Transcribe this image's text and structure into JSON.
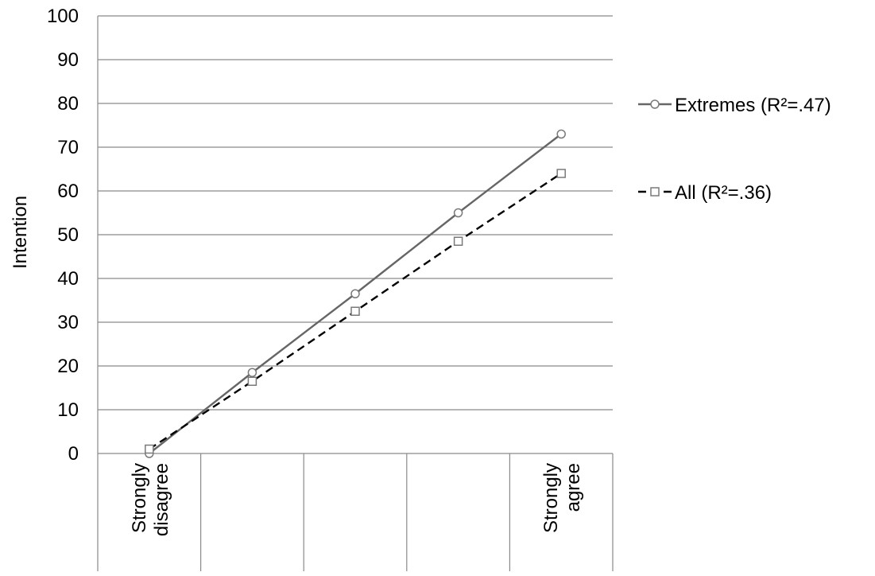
{
  "chart_data": {
    "type": "line",
    "title": "",
    "ylabel": "Intention",
    "xlabel": "",
    "ylim": [
      0,
      100
    ],
    "ytick_step": 10,
    "grid": "horizontal",
    "legend_position": "right",
    "categories": [
      [
        "Strongly",
        "disagree"
      ],
      [
        "",
        ""
      ],
      [
        "",
        ""
      ],
      [
        "",
        ""
      ],
      [
        "Strongly",
        "agree"
      ]
    ],
    "series": [
      {
        "name": "Extremes (R²=.47)",
        "values": [
          0,
          18.5,
          36.5,
          55,
          73
        ],
        "color": "#666666",
        "dash": "solid",
        "marker": "circle"
      },
      {
        "name": "All (R²=.36)",
        "values": [
          1,
          16.5,
          32.5,
          48.5,
          64
        ],
        "color": "#000000",
        "dash": "dashed",
        "marker": "square"
      }
    ]
  }
}
